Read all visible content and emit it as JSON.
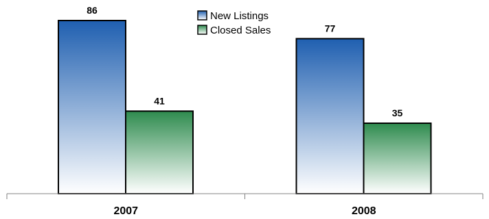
{
  "chart_data": {
    "type": "bar",
    "categories": [
      "2007",
      "2008"
    ],
    "series": [
      {
        "name": "New Listings",
        "values": [
          86,
          77
        ],
        "color": "#1f5fb0"
      },
      {
        "name": "Closed Sales",
        "values": [
          41,
          35
        ],
        "color": "#2e8b4e"
      }
    ],
    "title": "",
    "xlabel": "",
    "ylabel": "",
    "ylim": [
      0,
      86
    ],
    "grid": false,
    "legend_position": "top-center",
    "data_labels": true
  }
}
